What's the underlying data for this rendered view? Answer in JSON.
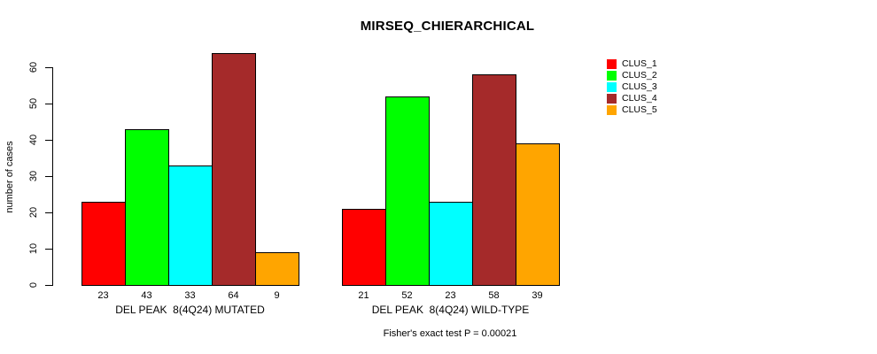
{
  "figure": {
    "title": "MIRSEQ_CHIERARCHICAL",
    "ylabel": "number of cases",
    "footer": "Fisher's exact test P = 0.00021"
  },
  "chart_data": {
    "type": "bar",
    "title": "MIRSEQ_CHIERARCHICAL",
    "xlabel": "",
    "ylabel": "number of cases",
    "ylim": [
      0,
      60
    ],
    "yticks": [
      0,
      10,
      20,
      30,
      40,
      50,
      60
    ],
    "grid": false,
    "legend_position": "right-outside",
    "bar_value_labels": true,
    "categories": [
      "DEL PEAK  8(4Q24) MUTATED",
      "DEL PEAK  8(4Q24) WILD-TYPE"
    ],
    "series": [
      {
        "name": "CLUS_1",
        "color": "#ff0000",
        "values": [
          23,
          21
        ]
      },
      {
        "name": "CLUS_2",
        "color": "#00ff00",
        "values": [
          43,
          52
        ]
      },
      {
        "name": "CLUS_3",
        "color": "#00ffff",
        "values": [
          33,
          23
        ]
      },
      {
        "name": "CLUS_4",
        "color": "#a52a2a",
        "values": [
          64,
          58
        ]
      },
      {
        "name": "CLUS_5",
        "color": "#ffa500",
        "values": [
          9,
          39
        ]
      }
    ],
    "annotation": "Fisher's exact test P = 0.00021"
  }
}
